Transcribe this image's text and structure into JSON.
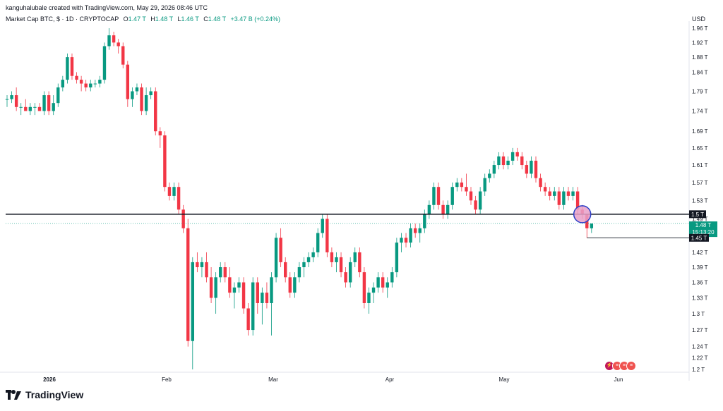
{
  "header": {
    "creator": "kanguhalubale created with TradingView.com, May 29, 2026 08:46 UTC",
    "symbol": "Market Cap BTC, $ · 1D · CRYPTOCAP",
    "o_label": "O",
    "o_value": "1.47 T",
    "h_label": "H",
    "h_value": "1.48 T",
    "l_label": "L",
    "l_value": "1.46 T",
    "c_label": "C",
    "c_value": "1.48 T",
    "change": "+3.47 B (+0.24%)",
    "currency": "USD"
  },
  "brand": {
    "name": "TradingView"
  },
  "events": {
    "icon1": "lightning-icon",
    "icon2": "flags-icon"
  },
  "colors": {
    "up": "#089981",
    "down": "#f23645",
    "line": "#131722",
    "circle_fill": "#e8a0c8",
    "circle_stroke": "#2a3fc8"
  },
  "chart_data": {
    "type": "candlestick",
    "y_axis_ticks": [
      "1.2 T",
      "1.22 T",
      "1.24 T",
      "1.27 T",
      "1.3 T",
      "1.33 T",
      "1.36 T",
      "1.39 T",
      "1.42 T",
      "1.45 T",
      "1.49 T",
      "1.53 T",
      "1.57 T",
      "1.61 T",
      "1.65 T",
      "1.69 T",
      "1.74 T",
      "1.79 T",
      "1.84 T",
      "1.88 T",
      "1.92 T",
      "1.96 T"
    ],
    "y_scale": "log",
    "x_axis_labels": [
      "2026",
      "Feb",
      "Mar",
      "Apr",
      "May",
      "Jun"
    ],
    "price_labels": {
      "resistance": "1.5 T",
      "last_price": "1.48 T",
      "countdown": "15:13:20",
      "marker": "1.45 T"
    },
    "horizontal_line": 1.5,
    "last_price": 1.48,
    "marker_level": 1.45,
    "candles": [
      {
        "o": 1.77,
        "h": 1.78,
        "l": 1.75,
        "c": 1.77
      },
      {
        "o": 1.77,
        "h": 1.79,
        "l": 1.76,
        "c": 1.78
      },
      {
        "o": 1.78,
        "h": 1.8,
        "l": 1.74,
        "c": 1.75
      },
      {
        "o": 1.75,
        "h": 1.76,
        "l": 1.73,
        "c": 1.75
      },
      {
        "o": 1.75,
        "h": 1.77,
        "l": 1.74,
        "c": 1.74
      },
      {
        "o": 1.74,
        "h": 1.76,
        "l": 1.73,
        "c": 1.75
      },
      {
        "o": 1.75,
        "h": 1.76,
        "l": 1.73,
        "c": 1.75
      },
      {
        "o": 1.75,
        "h": 1.76,
        "l": 1.74,
        "c": 1.74
      },
      {
        "o": 1.74,
        "h": 1.79,
        "l": 1.73,
        "c": 1.78
      },
      {
        "o": 1.78,
        "h": 1.79,
        "l": 1.73,
        "c": 1.74
      },
      {
        "o": 1.74,
        "h": 1.78,
        "l": 1.73,
        "c": 1.76
      },
      {
        "o": 1.76,
        "h": 1.81,
        "l": 1.75,
        "c": 1.8
      },
      {
        "o": 1.8,
        "h": 1.83,
        "l": 1.79,
        "c": 1.82
      },
      {
        "o": 1.82,
        "h": 1.89,
        "l": 1.81,
        "c": 1.88
      },
      {
        "o": 1.88,
        "h": 1.89,
        "l": 1.82,
        "c": 1.83
      },
      {
        "o": 1.83,
        "h": 1.84,
        "l": 1.81,
        "c": 1.82
      },
      {
        "o": 1.82,
        "h": 1.83,
        "l": 1.79,
        "c": 1.81
      },
      {
        "o": 1.81,
        "h": 1.82,
        "l": 1.79,
        "c": 1.8
      },
      {
        "o": 1.8,
        "h": 1.82,
        "l": 1.79,
        "c": 1.81
      },
      {
        "o": 1.81,
        "h": 1.82,
        "l": 1.8,
        "c": 1.81
      },
      {
        "o": 1.81,
        "h": 1.83,
        "l": 1.8,
        "c": 1.82
      },
      {
        "o": 1.82,
        "h": 1.92,
        "l": 1.81,
        "c": 1.91
      },
      {
        "o": 1.91,
        "h": 1.96,
        "l": 1.9,
        "c": 1.94
      },
      {
        "o": 1.94,
        "h": 1.95,
        "l": 1.91,
        "c": 1.92
      },
      {
        "o": 1.92,
        "h": 1.93,
        "l": 1.89,
        "c": 1.91
      },
      {
        "o": 1.91,
        "h": 1.92,
        "l": 1.85,
        "c": 1.86
      },
      {
        "o": 1.86,
        "h": 1.87,
        "l": 1.75,
        "c": 1.77
      },
      {
        "o": 1.77,
        "h": 1.8,
        "l": 1.75,
        "c": 1.79
      },
      {
        "o": 1.79,
        "h": 1.81,
        "l": 1.78,
        "c": 1.8
      },
      {
        "o": 1.8,
        "h": 1.81,
        "l": 1.73,
        "c": 1.74
      },
      {
        "o": 1.74,
        "h": 1.8,
        "l": 1.73,
        "c": 1.78
      },
      {
        "o": 1.78,
        "h": 1.8,
        "l": 1.77,
        "c": 1.79
      },
      {
        "o": 1.79,
        "h": 1.8,
        "l": 1.68,
        "c": 1.69
      },
      {
        "o": 1.69,
        "h": 1.7,
        "l": 1.65,
        "c": 1.68
      },
      {
        "o": 1.68,
        "h": 1.69,
        "l": 1.55,
        "c": 1.56
      },
      {
        "o": 1.56,
        "h": 1.57,
        "l": 1.53,
        "c": 1.54
      },
      {
        "o": 1.54,
        "h": 1.57,
        "l": 1.53,
        "c": 1.56
      },
      {
        "o": 1.56,
        "h": 1.57,
        "l": 1.5,
        "c": 1.51
      },
      {
        "o": 1.51,
        "h": 1.52,
        "l": 1.46,
        "c": 1.47
      },
      {
        "o": 1.47,
        "h": 1.49,
        "l": 1.24,
        "c": 1.25
      },
      {
        "o": 1.25,
        "h": 1.41,
        "l": 1.2,
        "c": 1.4
      },
      {
        "o": 1.4,
        "h": 1.42,
        "l": 1.38,
        "c": 1.39
      },
      {
        "o": 1.39,
        "h": 1.41,
        "l": 1.37,
        "c": 1.4
      },
      {
        "o": 1.4,
        "h": 1.42,
        "l": 1.36,
        "c": 1.37
      },
      {
        "o": 1.37,
        "h": 1.39,
        "l": 1.32,
        "c": 1.33
      },
      {
        "o": 1.33,
        "h": 1.38,
        "l": 1.3,
        "c": 1.37
      },
      {
        "o": 1.37,
        "h": 1.4,
        "l": 1.36,
        "c": 1.39
      },
      {
        "o": 1.39,
        "h": 1.4,
        "l": 1.36,
        "c": 1.37
      },
      {
        "o": 1.37,
        "h": 1.39,
        "l": 1.33,
        "c": 1.34
      },
      {
        "o": 1.34,
        "h": 1.36,
        "l": 1.31,
        "c": 1.35
      },
      {
        "o": 1.35,
        "h": 1.37,
        "l": 1.34,
        "c": 1.36
      },
      {
        "o": 1.36,
        "h": 1.37,
        "l": 1.3,
        "c": 1.31
      },
      {
        "o": 1.31,
        "h": 1.32,
        "l": 1.26,
        "c": 1.27
      },
      {
        "o": 1.27,
        "h": 1.37,
        "l": 1.26,
        "c": 1.36
      },
      {
        "o": 1.36,
        "h": 1.37,
        "l": 1.3,
        "c": 1.32
      },
      {
        "o": 1.32,
        "h": 1.35,
        "l": 1.28,
        "c": 1.34
      },
      {
        "o": 1.34,
        "h": 1.36,
        "l": 1.31,
        "c": 1.32
      },
      {
        "o": 1.32,
        "h": 1.38,
        "l": 1.26,
        "c": 1.37
      },
      {
        "o": 1.37,
        "h": 1.46,
        "l": 1.36,
        "c": 1.45
      },
      {
        "o": 1.45,
        "h": 1.47,
        "l": 1.39,
        "c": 1.4
      },
      {
        "o": 1.4,
        "h": 1.41,
        "l": 1.36,
        "c": 1.37
      },
      {
        "o": 1.37,
        "h": 1.38,
        "l": 1.33,
        "c": 1.34
      },
      {
        "o": 1.34,
        "h": 1.38,
        "l": 1.33,
        "c": 1.37
      },
      {
        "o": 1.37,
        "h": 1.4,
        "l": 1.36,
        "c": 1.39
      },
      {
        "o": 1.39,
        "h": 1.41,
        "l": 1.37,
        "c": 1.4
      },
      {
        "o": 1.4,
        "h": 1.42,
        "l": 1.39,
        "c": 1.41
      },
      {
        "o": 1.41,
        "h": 1.43,
        "l": 1.4,
        "c": 1.42
      },
      {
        "o": 1.42,
        "h": 1.47,
        "l": 1.41,
        "c": 1.46
      },
      {
        "o": 1.46,
        "h": 1.5,
        "l": 1.45,
        "c": 1.49
      },
      {
        "o": 1.49,
        "h": 1.5,
        "l": 1.41,
        "c": 1.42
      },
      {
        "o": 1.42,
        "h": 1.43,
        "l": 1.39,
        "c": 1.4
      },
      {
        "o": 1.4,
        "h": 1.42,
        "l": 1.38,
        "c": 1.41
      },
      {
        "o": 1.41,
        "h": 1.42,
        "l": 1.37,
        "c": 1.38
      },
      {
        "o": 1.38,
        "h": 1.39,
        "l": 1.35,
        "c": 1.36
      },
      {
        "o": 1.36,
        "h": 1.41,
        "l": 1.35,
        "c": 1.4
      },
      {
        "o": 1.4,
        "h": 1.43,
        "l": 1.39,
        "c": 1.42
      },
      {
        "o": 1.42,
        "h": 1.43,
        "l": 1.37,
        "c": 1.38
      },
      {
        "o": 1.38,
        "h": 1.39,
        "l": 1.31,
        "c": 1.32
      },
      {
        "o": 1.32,
        "h": 1.35,
        "l": 1.3,
        "c": 1.34
      },
      {
        "o": 1.34,
        "h": 1.36,
        "l": 1.32,
        "c": 1.35
      },
      {
        "o": 1.35,
        "h": 1.38,
        "l": 1.34,
        "c": 1.37
      },
      {
        "o": 1.37,
        "h": 1.38,
        "l": 1.34,
        "c": 1.35
      },
      {
        "o": 1.35,
        "h": 1.37,
        "l": 1.33,
        "c": 1.36
      },
      {
        "o": 1.36,
        "h": 1.39,
        "l": 1.35,
        "c": 1.38
      },
      {
        "o": 1.38,
        "h": 1.45,
        "l": 1.37,
        "c": 1.44
      },
      {
        "o": 1.44,
        "h": 1.46,
        "l": 1.42,
        "c": 1.45
      },
      {
        "o": 1.45,
        "h": 1.46,
        "l": 1.43,
        "c": 1.44
      },
      {
        "o": 1.44,
        "h": 1.48,
        "l": 1.43,
        "c": 1.47
      },
      {
        "o": 1.47,
        "h": 1.48,
        "l": 1.45,
        "c": 1.46
      },
      {
        "o": 1.46,
        "h": 1.48,
        "l": 1.44,
        "c": 1.47
      },
      {
        "o": 1.47,
        "h": 1.51,
        "l": 1.46,
        "c": 1.5
      },
      {
        "o": 1.5,
        "h": 1.53,
        "l": 1.49,
        "c": 1.52
      },
      {
        "o": 1.52,
        "h": 1.57,
        "l": 1.51,
        "c": 1.56
      },
      {
        "o": 1.56,
        "h": 1.57,
        "l": 1.51,
        "c": 1.52
      },
      {
        "o": 1.52,
        "h": 1.53,
        "l": 1.49,
        "c": 1.5
      },
      {
        "o": 1.5,
        "h": 1.53,
        "l": 1.49,
        "c": 1.52
      },
      {
        "o": 1.52,
        "h": 1.57,
        "l": 1.51,
        "c": 1.56
      },
      {
        "o": 1.56,
        "h": 1.58,
        "l": 1.55,
        "c": 1.57
      },
      {
        "o": 1.57,
        "h": 1.58,
        "l": 1.55,
        "c": 1.56
      },
      {
        "o": 1.56,
        "h": 1.59,
        "l": 1.54,
        "c": 1.55
      },
      {
        "o": 1.55,
        "h": 1.56,
        "l": 1.52,
        "c": 1.53
      },
      {
        "o": 1.53,
        "h": 1.54,
        "l": 1.5,
        "c": 1.51
      },
      {
        "o": 1.51,
        "h": 1.56,
        "l": 1.5,
        "c": 1.55
      },
      {
        "o": 1.55,
        "h": 1.59,
        "l": 1.54,
        "c": 1.58
      },
      {
        "o": 1.58,
        "h": 1.6,
        "l": 1.57,
        "c": 1.59
      },
      {
        "o": 1.59,
        "h": 1.62,
        "l": 1.58,
        "c": 1.61
      },
      {
        "o": 1.61,
        "h": 1.64,
        "l": 1.6,
        "c": 1.63
      },
      {
        "o": 1.63,
        "h": 1.64,
        "l": 1.6,
        "c": 1.61
      },
      {
        "o": 1.61,
        "h": 1.63,
        "l": 1.6,
        "c": 1.62
      },
      {
        "o": 1.62,
        "h": 1.65,
        "l": 1.61,
        "c": 1.64
      },
      {
        "o": 1.64,
        "h": 1.65,
        "l": 1.62,
        "c": 1.63
      },
      {
        "o": 1.63,
        "h": 1.64,
        "l": 1.6,
        "c": 1.61
      },
      {
        "o": 1.61,
        "h": 1.62,
        "l": 1.58,
        "c": 1.59
      },
      {
        "o": 1.59,
        "h": 1.63,
        "l": 1.58,
        "c": 1.62
      },
      {
        "o": 1.62,
        "h": 1.63,
        "l": 1.57,
        "c": 1.58
      },
      {
        "o": 1.58,
        "h": 1.59,
        "l": 1.55,
        "c": 1.56
      },
      {
        "o": 1.56,
        "h": 1.57,
        "l": 1.54,
        "c": 1.55
      },
      {
        "o": 1.55,
        "h": 1.56,
        "l": 1.53,
        "c": 1.54
      },
      {
        "o": 1.54,
        "h": 1.56,
        "l": 1.53,
        "c": 1.55
      },
      {
        "o": 1.55,
        "h": 1.56,
        "l": 1.51,
        "c": 1.52
      },
      {
        "o": 1.52,
        "h": 1.56,
        "l": 1.51,
        "c": 1.55
      },
      {
        "o": 1.55,
        "h": 1.56,
        "l": 1.53,
        "c": 1.54
      },
      {
        "o": 1.54,
        "h": 1.56,
        "l": 1.53,
        "c": 1.55
      },
      {
        "o": 1.55,
        "h": 1.56,
        "l": 1.5,
        "c": 1.51
      },
      {
        "o": 1.51,
        "h": 1.52,
        "l": 1.49,
        "c": 1.5
      },
      {
        "o": 1.5,
        "h": 1.5,
        "l": 1.45,
        "c": 1.47
      },
      {
        "o": 1.47,
        "h": 1.48,
        "l": 1.46,
        "c": 1.48
      }
    ]
  }
}
